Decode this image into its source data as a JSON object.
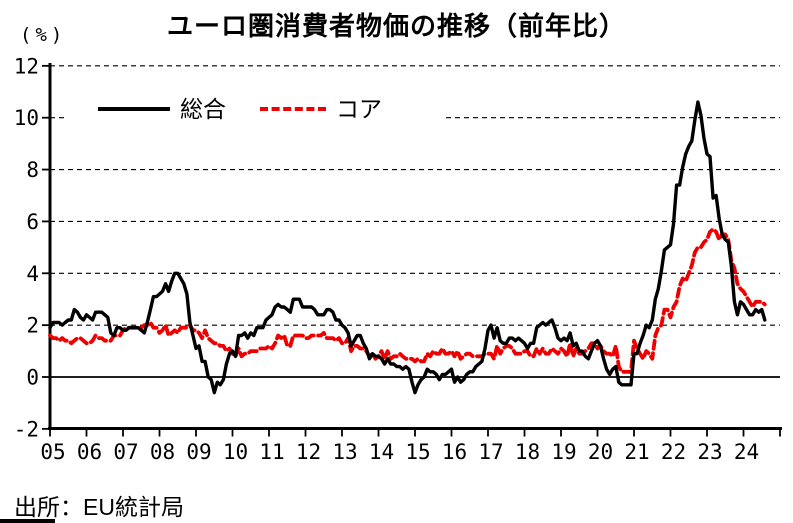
{
  "chart": {
    "title": "ユーロ圏消費者物価の推移（前年比）",
    "unit_label": "(%)",
    "source": "出所：EU統計局"
  },
  "legend": {
    "items": [
      {
        "label": "総合",
        "color": "#000000",
        "line_style": "solid"
      },
      {
        "label": "コア",
        "color": "#ee0000",
        "line_style": "dashed"
      }
    ]
  },
  "chart_data": {
    "type": "line",
    "title": "ユーロ圏消費者物価の推移（前年比）",
    "x_frequency": "monthly",
    "x_start": "2005-01",
    "x_end": "2024-08",
    "x_tick_labels": [
      "05",
      "06",
      "07",
      "08",
      "09",
      "10",
      "11",
      "12",
      "13",
      "14",
      "15",
      "16",
      "17",
      "18",
      "19",
      "20",
      "21",
      "22",
      "23",
      "24"
    ],
    "y_tick_labels": [
      "-2",
      "0",
      "2",
      "4",
      "6",
      "8",
      "10",
      "12"
    ],
    "ylim": [
      -2,
      12
    ],
    "grid_values": [
      2,
      4,
      6,
      8,
      10,
      12
    ],
    "zero_line": true,
    "legend_position": "top-left-inside",
    "series": [
      {
        "name": "総合",
        "color": "#000000",
        "line_style": "solid",
        "values": [
          1.9,
          2.1,
          2.1,
          2.1,
          2.0,
          2.1,
          2.2,
          2.2,
          2.6,
          2.5,
          2.3,
          2.2,
          2.4,
          2.3,
          2.2,
          2.5,
          2.5,
          2.5,
          2.4,
          2.3,
          1.7,
          1.6,
          1.9,
          1.9,
          1.8,
          1.8,
          1.9,
          1.9,
          1.9,
          1.9,
          1.8,
          1.7,
          2.1,
          2.6,
          3.1,
          3.1,
          3.2,
          3.3,
          3.6,
          3.3,
          3.7,
          4.0,
          4.0,
          3.8,
          3.6,
          3.2,
          2.1,
          1.6,
          1.1,
          1.2,
          0.6,
          0.6,
          0.0,
          -0.1,
          -0.6,
          -0.2,
          -0.3,
          -0.1,
          0.5,
          0.9,
          1.0,
          0.8,
          1.6,
          1.6,
          1.7,
          1.5,
          1.7,
          1.6,
          1.9,
          1.9,
          1.9,
          2.2,
          2.3,
          2.4,
          2.7,
          2.8,
          2.7,
          2.7,
          2.6,
          2.5,
          3.0,
          3.0,
          3.0,
          2.7,
          2.7,
          2.7,
          2.7,
          2.6,
          2.4,
          2.4,
          2.4,
          2.6,
          2.6,
          2.5,
          2.2,
          2.2,
          2.0,
          1.9,
          1.7,
          1.2,
          1.4,
          1.6,
          1.6,
          1.3,
          1.1,
          0.7,
          0.9,
          0.8,
          0.8,
          0.7,
          0.5,
          0.7,
          0.5,
          0.5,
          0.4,
          0.4,
          0.3,
          0.4,
          0.3,
          -0.2,
          -0.6,
          -0.3,
          -0.1,
          0.0,
          0.3,
          0.2,
          0.2,
          0.1,
          -0.1,
          0.1,
          0.1,
          0.2,
          0.3,
          -0.2,
          0.0,
          -0.2,
          -0.1,
          0.1,
          0.2,
          0.2,
          0.4,
          0.5,
          0.6,
          1.1,
          1.8,
          2.0,
          1.5,
          1.9,
          1.4,
          1.3,
          1.3,
          1.5,
          1.5,
          1.4,
          1.5,
          1.4,
          1.3,
          1.1,
          1.3,
          1.3,
          1.9,
          2.0,
          2.1,
          2.0,
          2.1,
          2.2,
          1.9,
          1.5,
          1.4,
          1.5,
          1.4,
          1.7,
          1.2,
          1.3,
          1.0,
          1.0,
          0.8,
          0.7,
          1.0,
          1.3,
          1.4,
          1.2,
          0.7,
          0.3,
          0.1,
          0.3,
          0.4,
          -0.2,
          -0.3,
          -0.3,
          -0.3,
          -0.3,
          0.9,
          0.9,
          1.3,
          1.6,
          2.0,
          1.9,
          2.2,
          3.0,
          3.4,
          4.1,
          4.9,
          5.0,
          5.1,
          5.9,
          7.4,
          7.4,
          8.1,
          8.6,
          8.9,
          9.1,
          9.9,
          10.6,
          10.1,
          9.2,
          8.6,
          8.5,
          6.9,
          7.0,
          6.1,
          5.5,
          5.3,
          5.2,
          4.3,
          2.9,
          2.4,
          2.9,
          2.8,
          2.6,
          2.4,
          2.4,
          2.6,
          2.5,
          2.6,
          2.2
        ]
      },
      {
        "name": "コア",
        "color": "#ee0000",
        "line_style": "dashed",
        "values": [
          1.6,
          1.5,
          1.5,
          1.4,
          1.5,
          1.4,
          1.4,
          1.3,
          1.4,
          1.5,
          1.5,
          1.4,
          1.3,
          1.3,
          1.4,
          1.6,
          1.5,
          1.5,
          1.4,
          1.4,
          1.4,
          1.6,
          1.6,
          1.6,
          1.8,
          1.9,
          1.9,
          1.9,
          1.9,
          1.9,
          1.9,
          2.0,
          2.0,
          2.1,
          1.9,
          1.9,
          1.7,
          1.8,
          2.0,
          1.6,
          1.7,
          1.8,
          1.7,
          1.9,
          1.9,
          1.9,
          2.0,
          1.8,
          1.8,
          1.7,
          1.5,
          1.8,
          1.5,
          1.4,
          1.3,
          1.3,
          1.2,
          1.2,
          1.0,
          1.1,
          0.9,
          0.8,
          1.1,
          0.8,
          0.9,
          0.9,
          1.0,
          1.0,
          1.0,
          1.1,
          1.1,
          1.1,
          1.2,
          1.1,
          1.3,
          1.6,
          1.5,
          1.6,
          1.2,
          1.2,
          1.6,
          1.6,
          1.6,
          1.6,
          1.5,
          1.5,
          1.6,
          1.6,
          1.6,
          1.6,
          1.7,
          1.5,
          1.5,
          1.5,
          1.4,
          1.5,
          1.3,
          1.3,
          1.5,
          1.0,
          1.2,
          1.2,
          1.1,
          1.1,
          1.0,
          0.8,
          0.9,
          0.7,
          0.8,
          1.0,
          0.7,
          1.0,
          0.7,
          0.8,
          0.8,
          0.9,
          0.8,
          0.7,
          0.7,
          0.7,
          0.6,
          0.7,
          0.6,
          0.6,
          0.9,
          0.8,
          1.0,
          0.9,
          0.9,
          1.1,
          0.9,
          0.9,
          1.0,
          0.8,
          1.0,
          0.7,
          0.8,
          0.9,
          0.9,
          0.8,
          0.8,
          0.8,
          0.8,
          0.9,
          0.9,
          0.9,
          0.7,
          1.2,
          0.9,
          1.1,
          1.2,
          1.2,
          1.1,
          0.9,
          0.9,
          0.9,
          1.0,
          1.0,
          0.8,
          0.8,
          1.1,
          0.9,
          1.1,
          0.9,
          0.9,
          1.1,
          1.0,
          0.9,
          1.1,
          1.0,
          0.8,
          1.3,
          0.8,
          1.1,
          0.9,
          0.9,
          1.0,
          1.1,
          1.3,
          1.3,
          1.1,
          1.2,
          1.0,
          0.9,
          0.9,
          0.8,
          1.2,
          0.4,
          0.2,
          0.2,
          0.2,
          0.2,
          1.4,
          1.1,
          0.9,
          0.7,
          1.0,
          0.9,
          0.7,
          1.6,
          1.9,
          2.0,
          2.6,
          2.6,
          2.3,
          2.7,
          2.9,
          3.5,
          3.8,
          3.7,
          4.0,
          4.3,
          4.8,
          5.0,
          5.0,
          5.2,
          5.3,
          5.6,
          5.7,
          5.6,
          5.3,
          5.5,
          5.5,
          5.3,
          4.5,
          4.2,
          3.6,
          3.4,
          3.3,
          3.1,
          2.9,
          2.7,
          2.9,
          2.9,
          2.9,
          2.8
        ]
      }
    ]
  }
}
